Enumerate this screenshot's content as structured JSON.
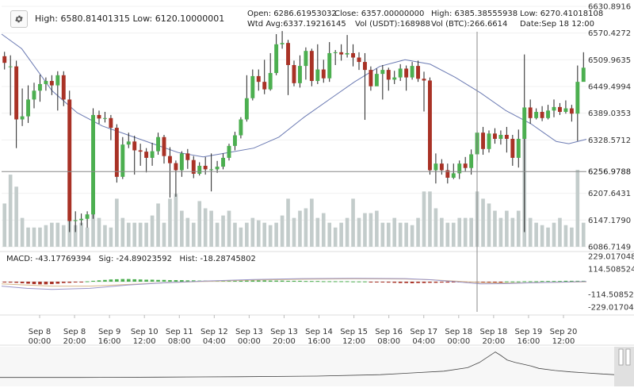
{
  "header": {
    "gear_icon": "gear-icon",
    "high_low": "High: 6580.81401315   Low: 6120.10000001",
    "ohlc_row1": [
      {
        "key": "open",
        "text": "Open:      6286.61953032"
      },
      {
        "key": "close",
        "text": "Close:      6357.00000000"
      },
      {
        "key": "high",
        "text": "High:        6385.38555938"
      },
      {
        "key": "low",
        "text": "Low:  6270.41018108"
      }
    ],
    "ohlc_row2": [
      {
        "key": "wtd-avg",
        "text": "Wtd Avg:6337.19216145"
      },
      {
        "key": "vol-usdt",
        "text": "Vol (USDT):168988"
      },
      {
        "key": "vol-btc",
        "text": "Vol (BTC):266.6614"
      },
      {
        "key": "date",
        "text": "Date:Sep 18 12:00"
      }
    ]
  },
  "colors": {
    "up": "#4caf50",
    "down": "#a93226",
    "volume": "#c3cccb",
    "moving_average": "#6c7bb3",
    "macd_line": "#9a95c8",
    "signal_line": "#d9b88a",
    "crosshair": "#8a8a8a",
    "navigator_line": "#444444"
  },
  "chart_data": [
    {
      "type": "candlestick",
      "y_axis_ticks": [
        "6630.8916",
        "6570.4272",
        "6509.9635",
        "6449.4994",
        "6389.0353",
        "6328.5712",
        "6256.9788",
        "6207.6431",
        "6147.1790",
        "6086.7149"
      ],
      "ylim": [
        6086.7149,
        6630.8916
      ],
      "x_axis_labels": [
        [
          "Sep 8",
          "00:00"
        ],
        [
          "Sep 8",
          "20:00"
        ],
        [
          "Sep 9",
          "16:00"
        ],
        [
          "Sep 10",
          "12:00"
        ],
        [
          "Sep 11",
          "08:00"
        ],
        [
          "Sep 12",
          "04:00"
        ],
        [
          "Sep 13",
          "00:00"
        ],
        [
          "Sep 13",
          "20:00"
        ],
        [
          "Sep 14",
          "16:00"
        ],
        [
          "Sep 15",
          "12:00"
        ],
        [
          "Sep 16",
          "08:00"
        ],
        [
          "Sep 17",
          "04:00"
        ],
        [
          "Sep 18",
          "00:00"
        ],
        [
          "Sep 18",
          "20:00"
        ],
        [
          "Sep 19",
          "16:00"
        ],
        [
          "Sep 20",
          "12:00"
        ]
      ],
      "crosshair_price": "6256.9788",
      "candles": [
        [
          6518,
          6503,
          6528,
          6488
        ],
        [
          6495,
          6495,
          6520,
          6384
        ],
        [
          6495,
          6375,
          6508,
          6310
        ],
        [
          6375,
          6382,
          6445,
          6360
        ],
        [
          6382,
          6420,
          6452,
          6367
        ],
        [
          6420,
          6440,
          6458,
          6400
        ],
        [
          6440,
          6455,
          6476,
          6415
        ],
        [
          6455,
          6462,
          6470,
          6440
        ],
        [
          6462,
          6452,
          6475,
          6430
        ],
        [
          6452,
          6475,
          6484,
          6395
        ],
        [
          6475,
          6420,
          6484,
          6405
        ],
        [
          6420,
          6145,
          6440,
          6120
        ],
        [
          6145,
          6147,
          6167,
          6120
        ],
        [
          6147,
          6150,
          6162,
          6135
        ],
        [
          6150,
          6160,
          6167,
          6130
        ],
        [
          6160,
          6385,
          6400,
          6150
        ],
        [
          6385,
          6377,
          6395,
          6365
        ],
        [
          6377,
          6378,
          6392,
          6368
        ],
        [
          6378,
          6356,
          6385,
          6328
        ],
        [
          6356,
          6245,
          6364,
          6232
        ],
        [
          6245,
          6318,
          6335,
          6240
        ],
        [
          6318,
          6325,
          6345,
          6310
        ],
        [
          6325,
          6305,
          6338,
          6250
        ],
        [
          6305,
          6302,
          6320,
          6270
        ],
        [
          6302,
          6288,
          6310,
          6255
        ],
        [
          6288,
          6303,
          6322,
          6270
        ],
        [
          6303,
          6335,
          6345,
          6295
        ],
        [
          6335,
          6292,
          6340,
          6275
        ],
        [
          6292,
          6276,
          6312,
          6198
        ],
        [
          6276,
          6260,
          6282,
          6200
        ],
        [
          6260,
          6298,
          6303,
          6245
        ],
        [
          6298,
          6283,
          6308,
          6263
        ],
        [
          6283,
          6252,
          6292,
          6242
        ],
        [
          6252,
          6270,
          6278,
          6248
        ],
        [
          6270,
          6262,
          6290,
          6250
        ],
        [
          6262,
          6262,
          6298,
          6212
        ],
        [
          6262,
          6268,
          6281,
          6254
        ],
        [
          6268,
          6288,
          6298,
          6262
        ],
        [
          6288,
          6315,
          6320,
          6282
        ],
        [
          6315,
          6339,
          6347,
          6305
        ],
        [
          6339,
          6375,
          6380,
          6332
        ],
        [
          6375,
          6423,
          6475,
          6370
        ],
        [
          6423,
          6473,
          6488,
          6418
        ],
        [
          6473,
          6460,
          6488,
          6440
        ],
        [
          6460,
          6443,
          6510,
          6432
        ],
        [
          6443,
          6480,
          6525,
          6440
        ],
        [
          6480,
          6545,
          6568,
          6475
        ],
        [
          6545,
          6548,
          6575,
          6535
        ],
        [
          6548,
          6498,
          6555,
          6430
        ],
        [
          6498,
          6457,
          6508,
          6450
        ],
        [
          6457,
          6496,
          6520,
          6447
        ],
        [
          6496,
          6530,
          6538,
          6465
        ],
        [
          6530,
          6462,
          6535,
          6450
        ],
        [
          6462,
          6488,
          6545,
          6455
        ],
        [
          6488,
          6468,
          6510,
          6458
        ],
        [
          6468,
          6525,
          6550,
          6460
        ],
        [
          6525,
          6527,
          6532,
          6498
        ],
        [
          6527,
          6522,
          6545,
          6508
        ],
        [
          6522,
          6525,
          6566,
          6515
        ],
        [
          6525,
          6515,
          6545,
          6495
        ],
        [
          6515,
          6505,
          6527,
          6487
        ],
        [
          6505,
          6487,
          6525,
          6374
        ],
        [
          6487,
          6450,
          6495,
          6440
        ],
        [
          6450,
          6478,
          6490,
          6470
        ],
        [
          6478,
          6487,
          6498,
          6420
        ],
        [
          6487,
          6465,
          6492,
          6440
        ],
        [
          6465,
          6470,
          6485,
          6455
        ],
        [
          6470,
          6490,
          6500,
          6462
        ],
        [
          6490,
          6470,
          6497,
          6440
        ],
        [
          6470,
          6496,
          6505,
          6465
        ],
        [
          6496,
          6467,
          6508,
          6460
        ],
        [
          6467,
          6463,
          6483,
          6393
        ],
        [
          6463,
          6260,
          6470,
          6250
        ],
        [
          6260,
          6275,
          6298,
          6230
        ],
        [
          6275,
          6260,
          6285,
          6250
        ],
        [
          6260,
          6243,
          6275,
          6230
        ],
        [
          6243,
          6253,
          6275,
          6240
        ],
        [
          6253,
          6275,
          6282,
          6240
        ],
        [
          6275,
          6265,
          6290,
          6258
        ],
        [
          6265,
          6296,
          6307,
          6250
        ],
        [
          6296,
          6345,
          6350,
          6282
        ],
        [
          6345,
          6308,
          6358,
          6295
        ],
        [
          6308,
          6343,
          6350,
          6300
        ],
        [
          6343,
          6331,
          6355,
          6320
        ],
        [
          6331,
          6340,
          6350,
          6318
        ],
        [
          6340,
          6331,
          6358,
          6300
        ],
        [
          6331,
          6288,
          6340,
          6270
        ],
        [
          6288,
          6331,
          6352,
          6266
        ],
        [
          6331,
          6402,
          6522,
          6120
        ],
        [
          6402,
          6378,
          6420,
          6365
        ],
        [
          6378,
          6392,
          6400,
          6375
        ],
        [
          6392,
          6378,
          6405,
          6371
        ],
        [
          6378,
          6395,
          6408,
          6375
        ],
        [
          6395,
          6403,
          6420,
          6380
        ],
        [
          6403,
          6392,
          6412,
          6385
        ],
        [
          6392,
          6400,
          6418,
          6388
        ],
        [
          6400,
          6388,
          6408,
          6370
        ],
        [
          6388,
          6460,
          6497,
          6326
        ],
        [
          6460,
          6492,
          6527,
          6475
        ]
      ],
      "volume": [
        0.18,
        0.3,
        0.25,
        0.12,
        0.08,
        0.08,
        0.08,
        0.09,
        0.1,
        0.1,
        0.09,
        0.2,
        0.09,
        0.1,
        0.08,
        0.25,
        0.12,
        0.09,
        0.08,
        0.2,
        0.12,
        0.1,
        0.1,
        0.1,
        0.1,
        0.13,
        0.18,
        0.1,
        0.2,
        0.22,
        0.15,
        0.12,
        0.1,
        0.19,
        0.16,
        0.15,
        0.1,
        0.13,
        0.15,
        0.1,
        0.08,
        0.1,
        0.12,
        0.11,
        0.1,
        0.09,
        0.1,
        0.13,
        0.2,
        0.12,
        0.15,
        0.16,
        0.2,
        0.12,
        0.14,
        0.1,
        0.08,
        0.1,
        0.12,
        0.2,
        0.12,
        0.14,
        0.14,
        0.15,
        0.1,
        0.1,
        0.12,
        0.1,
        0.1,
        0.09,
        0.12,
        0.23,
        0.23,
        0.16,
        0.12,
        0.1,
        0.1,
        0.12,
        0.12,
        0.12,
        0.23,
        0.2,
        0.18,
        0.15,
        0.12,
        0.15,
        0.12,
        0.15,
        0.5,
        0.12,
        0.1,
        0.09,
        0.08,
        0.1,
        0.12,
        0.09,
        0.08,
        0.32,
        0.1
      ],
      "moving_average": [
        [
          0,
          6568
        ],
        [
          8,
          6535
        ],
        [
          20,
          6440
        ],
        [
          30,
          6390
        ],
        [
          40,
          6360
        ],
        [
          50,
          6340
        ],
        [
          60,
          6320
        ],
        [
          70,
          6300
        ],
        [
          80,
          6290
        ],
        [
          90,
          6300
        ],
        [
          100,
          6310
        ],
        [
          110,
          6335
        ],
        [
          120,
          6380
        ],
        [
          130,
          6420
        ],
        [
          140,
          6460
        ],
        [
          150,
          6495
        ],
        [
          160,
          6510
        ],
        [
          170,
          6500
        ],
        [
          180,
          6470
        ],
        [
          190,
          6435
        ],
        [
          200,
          6395
        ],
        [
          210,
          6365
        ],
        [
          215,
          6345
        ],
        [
          220,
          6325
        ],
        [
          225,
          6320
        ],
        [
          232,
          6330
        ]
      ]
    },
    {
      "type": "macd",
      "macd": "-43.17769394",
      "signal": "-24.89023592",
      "hist": "-18.28745802",
      "y_axis_ticks": [
        "229.0170485",
        "114.5085242",
        "0",
        "-114.5085242",
        "-229.0170485"
      ],
      "ylim": [
        -229.0170485,
        229.0170485
      ],
      "histogram": [
        -6,
        -8,
        -10,
        -14,
        -18,
        -22,
        -24,
        -24,
        -22,
        -18,
        -12,
        -10,
        -6,
        -2,
        3,
        8,
        12,
        16,
        20,
        22,
        24,
        24,
        22,
        20,
        18,
        18,
        16,
        16,
        14,
        14,
        14,
        12,
        12,
        10,
        10,
        10,
        10,
        12,
        12,
        14,
        14,
        14,
        14,
        12,
        12,
        10,
        10,
        10,
        8,
        8,
        8,
        6,
        6,
        6,
        4,
        4,
        4,
        4,
        4,
        2,
        2,
        2,
        -2,
        -4,
        -6,
        -8,
        -10,
        -12,
        -12,
        -14,
        -12,
        -12,
        -10,
        -10,
        -8,
        -8,
        -6,
        -6,
        -4,
        -4,
        -2,
        -2,
        -2,
        -2,
        -2,
        2,
        2,
        2,
        4,
        4,
        4,
        6,
        6,
        6,
        6,
        8,
        8,
        8,
        8
      ],
      "macd_line": [
        [
          0,
          -40
        ],
        [
          10,
          -60
        ],
        [
          20,
          -70
        ],
        [
          35,
          -60
        ],
        [
          50,
          -30
        ],
        [
          65,
          -10
        ],
        [
          80,
          5
        ],
        [
          100,
          20
        ],
        [
          120,
          28
        ],
        [
          140,
          30
        ],
        [
          160,
          28
        ],
        [
          170,
          18
        ],
        [
          180,
          0
        ],
        [
          190,
          -20
        ],
        [
          200,
          -18
        ],
        [
          210,
          -10
        ],
        [
          220,
          -5
        ],
        [
          232,
          2
        ]
      ],
      "signal_line": [
        [
          0,
          -20
        ],
        [
          10,
          -30
        ],
        [
          20,
          -40
        ],
        [
          35,
          -40
        ],
        [
          50,
          -25
        ],
        [
          65,
          -10
        ],
        [
          80,
          2
        ],
        [
          100,
          14
        ],
        [
          120,
          22
        ],
        [
          140,
          26
        ],
        [
          160,
          24
        ],
        [
          170,
          18
        ],
        [
          180,
          6
        ],
        [
          190,
          -8
        ],
        [
          200,
          -12
        ],
        [
          210,
          -10
        ],
        [
          220,
          -6
        ],
        [
          232,
          -2
        ]
      ]
    },
    {
      "type": "line",
      "role": "navigator",
      "series": [
        {
          "points": [
            [
              0,
              0.12
            ],
            [
              100,
              0.12
            ],
            [
              200,
              0.13
            ],
            [
              300,
              0.14
            ],
            [
              400,
              0.16
            ],
            [
              480,
              0.2
            ],
            [
              520,
              0.25
            ],
            [
              560,
              0.3
            ],
            [
              590,
              0.4
            ],
            [
              605,
              0.55
            ],
            [
              615,
              0.7
            ],
            [
              625,
              0.85
            ],
            [
              632,
              0.75
            ],
            [
              640,
              0.62
            ],
            [
              650,
              0.55
            ],
            [
              660,
              0.5
            ],
            [
              670,
              0.45
            ],
            [
              680,
              0.38
            ],
            [
              700,
              0.32
            ],
            [
              720,
              0.28
            ],
            [
              740,
              0.25
            ],
            [
              760,
              0.22
            ],
            [
              775,
              0.2
            ]
          ]
        }
      ]
    }
  ]
}
